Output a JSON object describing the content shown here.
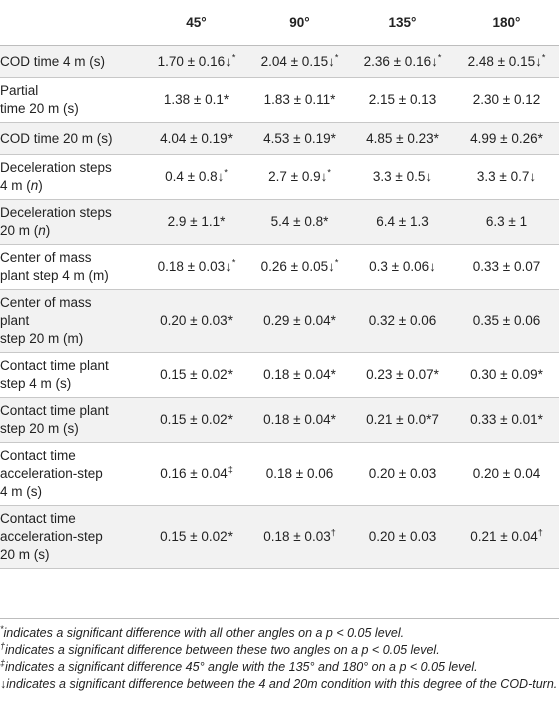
{
  "headers": [
    "",
    "45°",
    "90°",
    "135°",
    "180°"
  ],
  "rows": [
    {
      "label": "COD time 4 m (s)",
      "cells": [
        {
          "v": "1.70 ± 0.16↓",
          "s": "*"
        },
        {
          "v": "2.04 ± 0.15↓",
          "s": "*"
        },
        {
          "v": "2.36 ± 0.16↓",
          "s": "*"
        },
        {
          "v": "2.48 ± 0.15↓",
          "s": "*"
        }
      ]
    },
    {
      "label": "Partial\ntime 20 m (s)",
      "cells": [
        {
          "v": "1.38 ± 0.1*",
          "s": ""
        },
        {
          "v": "1.83 ± 0.11*",
          "s": ""
        },
        {
          "v": "2.15 ± 0.13",
          "s": ""
        },
        {
          "v": "2.30 ± 0.12",
          "s": ""
        }
      ]
    },
    {
      "label": "COD time 20 m (s)",
      "cells": [
        {
          "v": "4.04 ± 0.19*",
          "s": ""
        },
        {
          "v": "4.53 ± 0.19*",
          "s": ""
        },
        {
          "v": "4.85 ± 0.23*",
          "s": ""
        },
        {
          "v": "4.99 ± 0.26*",
          "s": ""
        }
      ]
    },
    {
      "label": "Deceleration steps\n4 m (n)",
      "cells": [
        {
          "v": "0.4 ± 0.8↓",
          "s": "*"
        },
        {
          "v": "2.7 ± 0.9↓",
          "s": "*"
        },
        {
          "v": "3.3 ± 0.5↓",
          "s": ""
        },
        {
          "v": "3.3 ± 0.7↓",
          "s": ""
        }
      ]
    },
    {
      "label": "Deceleration steps\n20 m (n)",
      "cells": [
        {
          "v": "2.9 ± 1.1*",
          "s": ""
        },
        {
          "v": "5.4 ± 0.8*",
          "s": ""
        },
        {
          "v": "6.4 ± 1.3",
          "s": ""
        },
        {
          "v": "6.3 ± 1",
          "s": ""
        }
      ]
    },
    {
      "label": "Center of mass\nplant step 4 m (m)",
      "cells": [
        {
          "v": "0.18 ± 0.03↓",
          "s": "*"
        },
        {
          "v": "0.26 ± 0.05↓",
          "s": "*"
        },
        {
          "v": "0.3 ± 0.06↓",
          "s": ""
        },
        {
          "v": "0.33 ± 0.07",
          "s": ""
        }
      ]
    },
    {
      "label": "Center of mass\nplant\nstep 20 m (m)",
      "cells": [
        {
          "v": "0.20 ± 0.03*",
          "s": ""
        },
        {
          "v": "0.29 ± 0.04*",
          "s": ""
        },
        {
          "v": "0.32 ± 0.06",
          "s": ""
        },
        {
          "v": "0.35 ± 0.06",
          "s": ""
        }
      ]
    },
    {
      "label": "Contact time plant\nstep 4 m (s)",
      "cells": [
        {
          "v": "0.15 ± 0.02*",
          "s": ""
        },
        {
          "v": "0.18 ± 0.04*",
          "s": ""
        },
        {
          "v": "0.23 ± 0.07*",
          "s": ""
        },
        {
          "v": "0.30 ± 0.09*",
          "s": ""
        }
      ]
    },
    {
      "label": "Contact time plant\nstep 20 m (s)",
      "cells": [
        {
          "v": "0.15 ± 0.02*",
          "s": ""
        },
        {
          "v": "0.18 ± 0.04*",
          "s": ""
        },
        {
          "v": "0.21 ± 0.0*7",
          "s": ""
        },
        {
          "v": "0.33 ± 0.01*",
          "s": ""
        }
      ]
    },
    {
      "label": "Contact time\nacceleration-step\n4 m (s)",
      "cells": [
        {
          "v": "0.16 ± 0.04",
          "s": "‡"
        },
        {
          "v": "0.18 ± 0.06",
          "s": ""
        },
        {
          "v": "0.20 ± 0.03",
          "s": ""
        },
        {
          "v": "0.20 ± 0.04",
          "s": ""
        }
      ]
    },
    {
      "label": "Contact time\nacceleration-step\n20 m (s)",
      "cells": [
        {
          "v": "0.15 ± 0.02*",
          "s": ""
        },
        {
          "v": "0.18 ± 0.03",
          "s": "†"
        },
        {
          "v": "0.20 ± 0.03",
          "s": ""
        },
        {
          "v": "0.21 ± 0.04",
          "s": "†"
        }
      ]
    }
  ],
  "footnotes": [
    {
      "mark": "*",
      "text": "indicates a significant difference with all other angles on a p < 0.05 level."
    },
    {
      "mark": "†",
      "text": "indicates a significant difference between these two angles on a p < 0.05 level."
    },
    {
      "mark": "‡",
      "text": "indicates a significant difference 45° angle with the 135° and 180° on a p < 0.05 level."
    },
    {
      "mark": "",
      "text": "↓indicates a significant difference between the 4 and 20m condition with this degree of the COD-turn."
    }
  ]
}
